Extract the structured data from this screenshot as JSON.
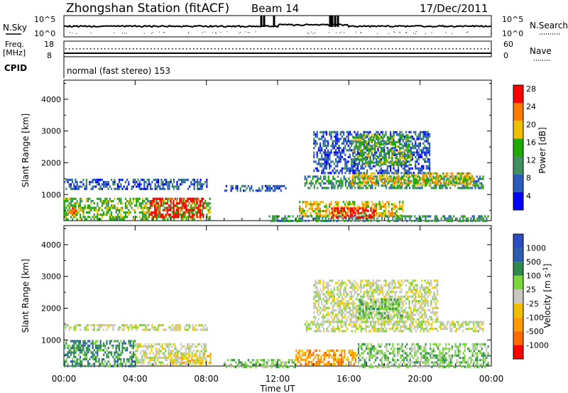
{
  "header": {
    "station": "Zhongshan Station (fitACF)",
    "beam": "Beam 14",
    "date": "17/Dec/2011"
  },
  "strip_labels": {
    "nsky": "N.Sky",
    "nsky_top": "10^5",
    "nsky_bottom": "10^0",
    "nsearch": "N.Search",
    "nsearch_top": "10^5",
    "nsearch_bottom": "10^0",
    "freq_l1": "Freq.",
    "freq_l2": "[MHz]",
    "freq_top": "18",
    "freq_bottom": "8",
    "nave": "Nave",
    "nave_top": "60",
    "nave_bottom": "0",
    "cpid": "CPID",
    "cpid_mode": "normal (fast stereo) 153"
  },
  "colors": {
    "power": [
      "#0000ff",
      "#2a5bbf",
      "#3f8f5f",
      "#1faa00",
      "#f0c000",
      "#ff7a00",
      "#ff0000"
    ],
    "velocity": [
      "#3050c8",
      "#2f5aa8",
      "#2f8f50",
      "#7ad63a",
      "#c8c8c0",
      "#f0d000",
      "#ff9a00",
      "#ff5a00",
      "#ff0000"
    ]
  },
  "chart_data": [
    {
      "type": "heatmap",
      "panel": "power",
      "ylabel": "Slant Range [km]",
      "yticks": [
        1000,
        2000,
        3000,
        4000
      ],
      "ylim": [
        180,
        4600
      ],
      "xlim": [
        0,
        24
      ],
      "colorbar_label": "Power [dB]",
      "colorbar_ticks": [
        "4",
        "8",
        "12",
        "16",
        "20",
        "24",
        "28"
      ],
      "regions": [
        {
          "x0": 0.0,
          "x1": 8.0,
          "y0": 1150,
          "y1": 1500,
          "level": 1
        },
        {
          "x0": 0.0,
          "x1": 8.2,
          "y0": 250,
          "y1": 900,
          "level": 3
        },
        {
          "x0": 4.8,
          "x1": 7.8,
          "y0": 300,
          "y1": 900,
          "level": 6
        },
        {
          "x0": 0.2,
          "x1": 1.0,
          "y0": 350,
          "y1": 600,
          "level": 5
        },
        {
          "x0": 9.0,
          "x1": 12.5,
          "y0": 1100,
          "y1": 1300,
          "level": 1
        },
        {
          "x0": 11.5,
          "x1": 23.8,
          "y0": 180,
          "y1": 350,
          "level": 2
        },
        {
          "x0": 13.2,
          "x1": 19.0,
          "y0": 300,
          "y1": 800,
          "level": 4
        },
        {
          "x0": 15.0,
          "x1": 17.5,
          "y0": 300,
          "y1": 600,
          "level": 6
        },
        {
          "x0": 13.5,
          "x1": 23.5,
          "y0": 1200,
          "y1": 1600,
          "level": 2
        },
        {
          "x0": 16.0,
          "x1": 23.0,
          "y0": 1300,
          "y1": 1700,
          "level": 4
        },
        {
          "x0": 14.0,
          "x1": 20.5,
          "y0": 1700,
          "y1": 3000,
          "level": 1
        },
        {
          "x0": 16.2,
          "x1": 19.5,
          "y0": 1900,
          "y1": 2900,
          "level": 3
        }
      ]
    },
    {
      "type": "heatmap",
      "panel": "velocity",
      "ylabel": "Slant Range [km]",
      "yticks": [
        1000,
        2000,
        3000,
        4000
      ],
      "ylim": [
        180,
        4600
      ],
      "xlim": [
        0,
        24
      ],
      "colorbar_label": "Velocity [m s^-1]",
      "colorbar_ticks": [
        "1000",
        "500",
        "100",
        "25",
        "-25",
        "-100",
        "-500",
        "-1000"
      ],
      "regions": [
        {
          "x0": 0.0,
          "x1": 8.0,
          "y0": 1300,
          "y1": 1500,
          "level": 4
        },
        {
          "x0": 0.0,
          "x1": 4.0,
          "y0": 200,
          "y1": 1000,
          "level": 2
        },
        {
          "x0": 4.0,
          "x1": 8.0,
          "y0": 250,
          "y1": 900,
          "level": 4
        },
        {
          "x0": 6.0,
          "x1": 8.2,
          "y0": 250,
          "y1": 600,
          "level": 5
        },
        {
          "x0": 9.0,
          "x1": 13.0,
          "y0": 180,
          "y1": 400,
          "level": 3
        },
        {
          "x0": 13.0,
          "x1": 16.5,
          "y0": 250,
          "y1": 700,
          "level": 6
        },
        {
          "x0": 16.5,
          "x1": 23.8,
          "y0": 180,
          "y1": 900,
          "level": 3
        },
        {
          "x0": 13.5,
          "x1": 23.5,
          "y0": 1300,
          "y1": 1600,
          "level": 4
        },
        {
          "x0": 14.0,
          "x1": 21.0,
          "y0": 1600,
          "y1": 2900,
          "level": 4
        },
        {
          "x0": 16.5,
          "x1": 19.0,
          "y0": 1700,
          "y1": 2300,
          "level": 3
        }
      ]
    }
  ],
  "xaxis": {
    "ticks": [
      "00:00",
      "04:00",
      "08:00",
      "12:00",
      "16:00",
      "20:00",
      "00:00"
    ],
    "label": "Time UT"
  }
}
